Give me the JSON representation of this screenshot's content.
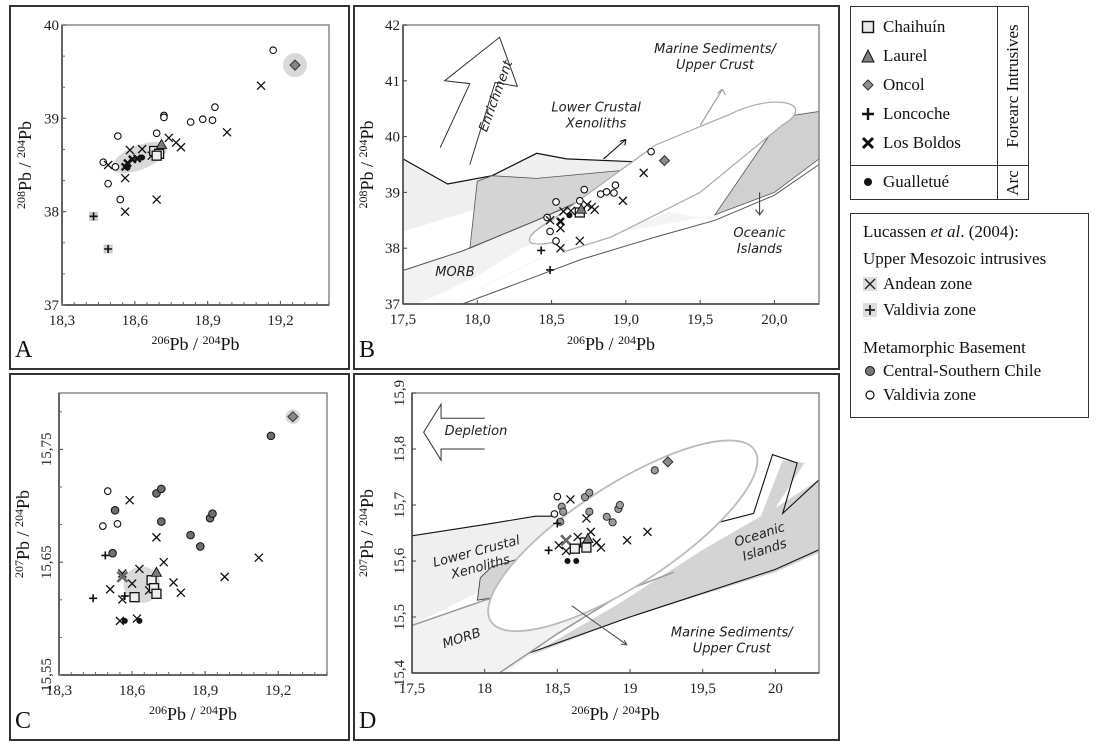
{
  "figure": {
    "panel_labels": [
      "A",
      "B",
      "C",
      "D"
    ]
  },
  "legend_main": {
    "group_forearc": "Forearc Intrusives",
    "group_arc": "Arc",
    "items": [
      {
        "label": "Chaihuín",
        "symbol": "square",
        "fill": "#e8e8e8"
      },
      {
        "label": "Laurel",
        "symbol": "triangle",
        "fill": "#808080"
      },
      {
        "label": "Oncol",
        "symbol": "diamond",
        "fill": "#909090"
      },
      {
        "label": "Loncoche",
        "symbol": "plus",
        "fill": "#111111"
      },
      {
        "label": "Los Boldos",
        "symbol": "x-bold",
        "fill": "#111111"
      }
    ],
    "arc_item": {
      "label": "Gualletué",
      "symbol": "dot",
      "fill": "#111111"
    }
  },
  "legend_ref": {
    "source_prefix": "Lucassen ",
    "source_italic": "et al",
    "source_suffix": ". (2004):",
    "group1": "Upper Mesozoic intrusives",
    "group1_items": [
      {
        "label": "Andean zone",
        "symbol": "x"
      },
      {
        "label": "Valdivia zone",
        "symbol": "plus"
      }
    ],
    "group2": "Metamorphic Basement",
    "group2_items": [
      {
        "label": "Central-Southern Chile",
        "symbol": "circle-filled"
      },
      {
        "label": "Valdivia zone",
        "symbol": "circle-open"
      }
    ]
  },
  "chart_data": [
    {
      "id": "A",
      "type": "scatter",
      "xlabel": "206Pb / 204Pb",
      "ylabel": "208Pb / 204Pb",
      "xlim": [
        18.3,
        19.4
      ],
      "ylim": [
        37,
        40
      ],
      "xticks": [
        "18,3",
        "18,6",
        "18,9",
        "19,2"
      ],
      "xtick_values": [
        18.3,
        18.6,
        18.9,
        19.2
      ],
      "yticks": [
        "37",
        "38",
        "39",
        "40"
      ],
      "ytick_values": [
        37,
        38,
        39,
        40
      ],
      "highlights": [
        {
          "shape": "ellipse",
          "cx": 18.62,
          "cy": 38.58,
          "rx": 0.12,
          "ry": 0.16
        },
        {
          "shape": "circle",
          "cx": 19.26,
          "cy": 39.57
        }
      ],
      "series": [
        {
          "name": "Valdivia zone basement",
          "symbol": "circle-open",
          "points": [
            [
              18.47,
              38.53
            ],
            [
              18.49,
              38.3
            ],
            [
              18.52,
              38.48
            ],
            [
              18.53,
              38.81
            ],
            [
              18.54,
              38.13
            ],
            [
              18.69,
              38.84
            ],
            [
              18.72,
              39.03
            ],
            [
              18.72,
              39.01
            ],
            [
              18.83,
              38.96
            ],
            [
              18.88,
              38.99
            ],
            [
              18.92,
              38.98
            ],
            [
              18.93,
              39.12
            ],
            [
              19.17,
              39.73
            ]
          ]
        },
        {
          "name": "Andean zone",
          "symbol": "x",
          "points": [
            [
              18.49,
              38.5
            ],
            [
              18.56,
              38.36
            ],
            [
              18.56,
              38.0
            ],
            [
              18.58,
              38.66
            ],
            [
              18.63,
              38.67
            ],
            [
              18.67,
              38.6
            ],
            [
              18.69,
              38.13
            ],
            [
              18.74,
              38.79
            ],
            [
              18.77,
              38.74
            ],
            [
              18.79,
              38.69
            ],
            [
              18.98,
              38.85
            ],
            [
              19.12,
              39.35
            ]
          ]
        },
        {
          "name": "Valdivia zone intrusives",
          "symbol": "plus-gray",
          "points": [
            [
              18.43,
              37.95
            ],
            [
              18.49,
              37.6
            ]
          ]
        },
        {
          "name": "Los Boldos",
          "symbol": "x-bold",
          "points": [
            [
              18.56,
              38.48
            ],
            [
              18.57,
              38.52
            ],
            [
              18.59,
              38.56
            ],
            [
              18.61,
              38.57
            ]
          ]
        },
        {
          "name": "Chaihuín",
          "symbol": "square",
          "points": [
            [
              18.68,
              38.65
            ],
            [
              18.7,
              38.62
            ],
            [
              18.69,
              38.6
            ]
          ]
        },
        {
          "name": "Laurel",
          "symbol": "triangle",
          "points": [
            [
              18.71,
              38.72
            ]
          ]
        },
        {
          "name": "Oncol",
          "symbol": "diamond",
          "points": [
            [
              19.26,
              39.57
            ]
          ]
        },
        {
          "name": "Gualletué",
          "symbol": "dot",
          "points": [
            [
              18.57,
              38.47
            ],
            [
              18.63,
              38.58
            ]
          ]
        }
      ]
    },
    {
      "id": "B",
      "type": "scatter",
      "xlabel": "206Pb / 204Pb",
      "ylabel": "208Pb / 204Pb",
      "xlim": [
        17.5,
        20.3
      ],
      "ylim": [
        37,
        42
      ],
      "xticks": [
        "17,5",
        "18,0",
        "18,5",
        "19,0",
        "19,5",
        "20,0"
      ],
      "xtick_values": [
        17.5,
        18.0,
        18.5,
        19.0,
        19.5,
        20.0
      ],
      "yticks": [
        "37",
        "38",
        "39",
        "40",
        "41",
        "42"
      ],
      "ytick_values": [
        37,
        38,
        39,
        40,
        41,
        42
      ],
      "annotations": [
        "Enrichment",
        "Lower Crustal Xenoliths",
        "Marine Sediments/ Upper Crust",
        "Oceanic Islands",
        "MORB"
      ],
      "series": [
        {
          "name": "Valdivia zone basement",
          "symbol": "circle-open",
          "points": [
            [
              18.47,
              38.55
            ],
            [
              18.49,
              38.3
            ],
            [
              18.53,
              38.83
            ],
            [
              18.53,
              38.13
            ],
            [
              18.69,
              38.85
            ],
            [
              18.72,
              39.05
            ],
            [
              18.83,
              38.97
            ],
            [
              18.87,
              39.01
            ],
            [
              18.92,
              38.99
            ],
            [
              18.93,
              39.13
            ],
            [
              19.17,
              39.73
            ]
          ]
        },
        {
          "name": "Andean zone",
          "symbol": "x",
          "points": [
            [
              18.49,
              38.5
            ],
            [
              18.56,
              38.36
            ],
            [
              18.56,
              38.0
            ],
            [
              18.58,
              38.66
            ],
            [
              18.63,
              38.67
            ],
            [
              18.69,
              38.13
            ],
            [
              18.74,
              38.78
            ],
            [
              18.77,
              38.74
            ],
            [
              18.79,
              38.69
            ],
            [
              18.98,
              38.85
            ],
            [
              19.12,
              39.35
            ]
          ]
        },
        {
          "name": "Valdivia zone intrusives",
          "symbol": "plus",
          "points": [
            [
              18.43,
              37.96
            ],
            [
              18.49,
              37.61
            ]
          ]
        },
        {
          "name": "Chaihuín",
          "symbol": "square",
          "points": [
            [
              18.69,
              38.64
            ]
          ]
        },
        {
          "name": "Laurel",
          "symbol": "triangle",
          "points": [
            [
              18.7,
              38.7
            ]
          ]
        },
        {
          "name": "Oncol",
          "symbol": "diamond",
          "points": [
            [
              19.26,
              39.57
            ]
          ]
        },
        {
          "name": "Los Boldos",
          "symbol": "x-bold",
          "points": [
            [
              18.56,
              38.48
            ]
          ]
        },
        {
          "name": "Gualletué",
          "symbol": "dot",
          "points": [
            [
              18.62,
              38.59
            ]
          ]
        }
      ]
    },
    {
      "id": "C",
      "type": "scatter",
      "xlabel": "206Pb / 204Pb",
      "ylabel": "207Pb / 204Pb",
      "xlim": [
        18.3,
        19.4
      ],
      "ylim": [
        15.55,
        15.8
      ],
      "xticks": [
        "18,3",
        "18,6",
        "18,9",
        "19,2"
      ],
      "xtick_values": [
        18.3,
        18.6,
        18.9,
        19.2
      ],
      "yticks": [
        "15,55",
        "15,65",
        "15,75"
      ],
      "ytick_values": [
        15.55,
        15.65,
        15.75
      ],
      "highlights": [
        {
          "shape": "circle",
          "cx": 18.64,
          "cy": 15.63,
          "rx": 0.075,
          "ry": 0.0225
        },
        {
          "shape": "circle",
          "cx": 19.26,
          "cy": 15.779,
          "rx": 0.03,
          "ry": 0.009
        }
      ],
      "series": [
        {
          "name": "Central-Southern Chile",
          "symbol": "circle-filled",
          "points": [
            [
              18.53,
              15.696
            ],
            [
              18.52,
              15.658
            ],
            [
              18.7,
              15.711
            ],
            [
              18.72,
              15.715
            ],
            [
              18.72,
              15.686
            ],
            [
              18.84,
              15.674
            ],
            [
              18.88,
              15.664
            ],
            [
              18.92,
              15.689
            ],
            [
              18.93,
              15.693
            ],
            [
              19.17,
              15.762
            ]
          ]
        },
        {
          "name": "Valdivia zone basement",
          "symbol": "circle-open",
          "points": [
            [
              18.48,
              15.682
            ],
            [
              18.5,
              15.713
            ],
            [
              18.54,
              15.684
            ]
          ]
        },
        {
          "name": "Andean zone",
          "symbol": "x",
          "points": [
            [
              18.59,
              15.705
            ],
            [
              18.7,
              15.672
            ],
            [
              18.73,
              15.65
            ],
            [
              18.98,
              15.637
            ],
            [
              19.12,
              15.654
            ],
            [
              18.51,
              15.626
            ],
            [
              18.56,
              15.64
            ],
            [
              18.6,
              15.631
            ],
            [
              18.63,
              15.644
            ],
            [
              18.67,
              15.625
            ],
            [
              18.77,
              15.632
            ],
            [
              18.8,
              15.623
            ],
            [
              18.56,
              15.617
            ],
            [
              18.62,
              15.6
            ],
            [
              18.55,
              15.598
            ]
          ]
        },
        {
          "name": "Valdivia zone intrusives",
          "symbol": "plus",
          "points": [
            [
              18.44,
              15.618
            ],
            [
              18.49,
              15.656
            ],
            [
              18.57,
              15.62
            ]
          ]
        },
        {
          "name": "Los Boldos",
          "symbol": "x-gray",
          "points": [
            [
              18.56,
              15.637
            ]
          ]
        },
        {
          "name": "Chaihuín",
          "symbol": "square",
          "points": [
            [
              18.61,
              15.619
            ],
            [
              18.68,
              15.634
            ],
            [
              18.69,
              15.627
            ],
            [
              18.7,
              15.622
            ]
          ]
        },
        {
          "name": "Laurel",
          "symbol": "triangle",
          "points": [
            [
              18.7,
              15.641
            ]
          ]
        },
        {
          "name": "Oncol",
          "symbol": "diamond",
          "points": [
            [
              19.26,
              15.779
            ]
          ]
        },
        {
          "name": "Gualletué",
          "symbol": "dot",
          "points": [
            [
              18.57,
              15.598
            ],
            [
              18.63,
              15.598
            ]
          ]
        }
      ]
    },
    {
      "id": "D",
      "type": "scatter",
      "xlabel": "206Pb / 204Pb",
      "ylabel": "207Pb / 204Pb",
      "xlim": [
        17.5,
        20.3
      ],
      "ylim": [
        15.4,
        15.9
      ],
      "xticks": [
        "17,5",
        "18",
        "18,5",
        "19",
        "19,5",
        "20"
      ],
      "xtick_values": [
        17.5,
        18,
        18.5,
        19,
        19.5,
        20
      ],
      "yticks": [
        "15,4",
        "15,5",
        "15,6",
        "15,7",
        "15,8",
        "15,9"
      ],
      "ytick_values": [
        15.4,
        15.5,
        15.6,
        15.7,
        15.8,
        15.9
      ],
      "annotations": [
        "Depletion",
        "Lower Crustal Xenoliths",
        "Oceanic Islands",
        "MORB",
        "Marine Sediments/ Upper Crust"
      ],
      "series": [
        {
          "name": "Central-Southern Chile",
          "symbol": "circle-gray",
          "points": [
            [
              18.53,
              15.697
            ],
            [
              18.52,
              15.67
            ],
            [
              18.69,
              15.714
            ],
            [
              18.72,
              15.722
            ],
            [
              18.72,
              15.688
            ],
            [
              18.84,
              15.679
            ],
            [
              18.88,
              15.669
            ],
            [
              18.92,
              15.693
            ],
            [
              18.93,
              15.7
            ],
            [
              19.17,
              15.762
            ],
            [
              18.54,
              15.688
            ]
          ]
        },
        {
          "name": "Valdivia zone basement",
          "symbol": "circle-open",
          "points": [
            [
              18.48,
              15.684
            ],
            [
              18.5,
              15.715
            ]
          ]
        },
        {
          "name": "Andean zone",
          "symbol": "x",
          "points": [
            [
              18.59,
              15.71
            ],
            [
              18.7,
              15.676
            ],
            [
              18.73,
              15.652
            ],
            [
              18.98,
              15.637
            ],
            [
              19.12,
              15.652
            ],
            [
              18.51,
              15.628
            ],
            [
              18.64,
              15.643
            ],
            [
              18.77,
              15.633
            ],
            [
              18.8,
              15.624
            ],
            [
              18.56,
              15.618
            ]
          ]
        },
        {
          "name": "Valdivia zone intrusives",
          "symbol": "plus",
          "points": [
            [
              18.44,
              15.619
            ],
            [
              18.5,
              15.667
            ]
          ]
        },
        {
          "name": "Los Boldos",
          "symbol": "x-gray",
          "points": [
            [
              18.56,
              15.637
            ]
          ]
        },
        {
          "name": "Chaihuín",
          "symbol": "square",
          "points": [
            [
              18.62,
              15.622
            ],
            [
              18.69,
              15.633
            ],
            [
              18.7,
              15.624
            ]
          ]
        },
        {
          "name": "Laurel",
          "symbol": "triangle",
          "points": [
            [
              18.71,
              15.64
            ]
          ]
        },
        {
          "name": "Oncol",
          "symbol": "diamond",
          "points": [
            [
              19.26,
              15.777
            ]
          ]
        },
        {
          "name": "Gualletué",
          "symbol": "dot",
          "points": [
            [
              18.57,
              15.6
            ],
            [
              18.63,
              15.6
            ]
          ]
        }
      ]
    }
  ]
}
